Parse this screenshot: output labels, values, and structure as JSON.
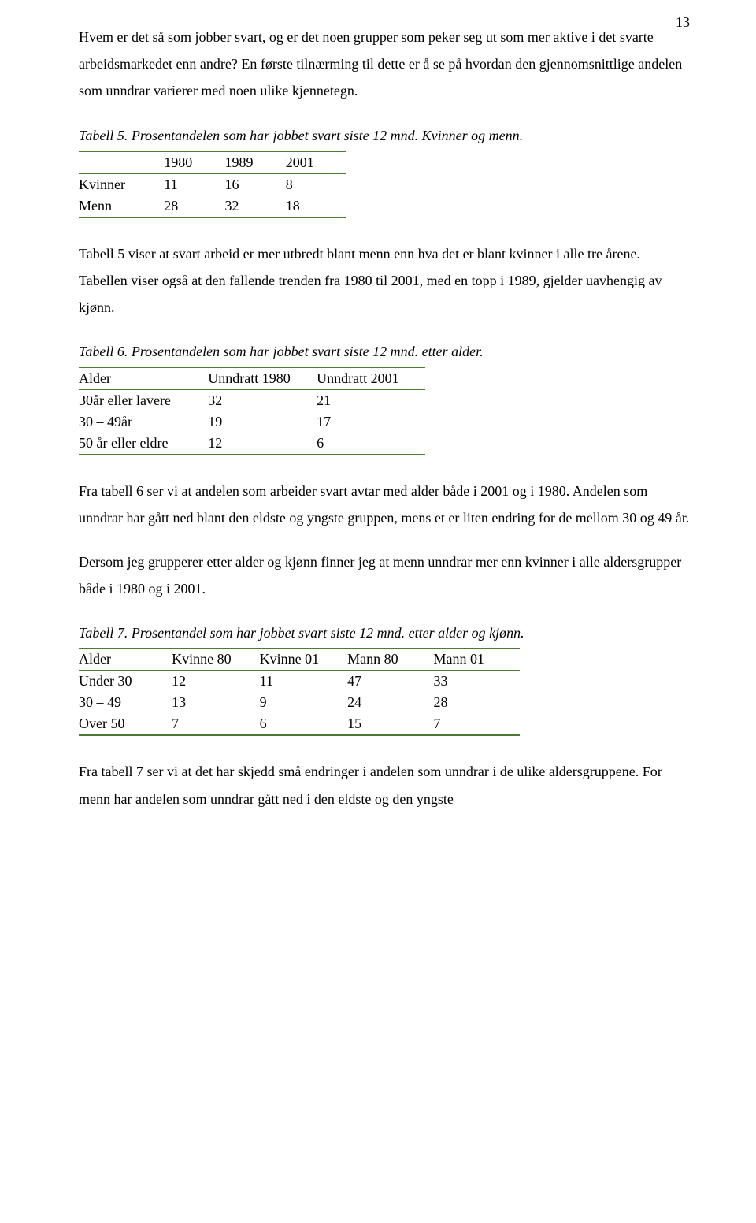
{
  "page_number": "13",
  "rule_color": "#497b31",
  "text_color": "#000000",
  "background_color": "#ffffff",
  "font": {
    "family": "Times New Roman",
    "body_size_pt": 13,
    "line_height": 1.9
  },
  "para1": "Hvem er det så som jobber svart, og er det noen grupper som peker seg ut som mer aktive i det svarte arbeidsmarkedet enn andre? En første tilnærming til dette er å se på hvordan den gjennomsnittlige andelen som unndrar varierer med noen ulike kjennetegn.",
  "table5": {
    "type": "table",
    "caption": "Tabell 5. Prosentandelen som har jobbet svart siste 12 mnd. Kvinner og menn.",
    "columns": [
      "",
      "1980",
      "1989",
      "2001"
    ],
    "rows": [
      [
        "Kvinner",
        "11",
        "16",
        "8"
      ],
      [
        "Menn",
        "28",
        "32",
        "18"
      ]
    ]
  },
  "para2": "Tabell 5 viser at svart arbeid er mer utbredt blant menn enn hva det er blant kvinner i alle tre årene. Tabellen viser også at den fallende trenden fra 1980 til 2001, med en topp i 1989, gjelder uavhengig av kjønn.",
  "table6": {
    "type": "table",
    "caption": "Tabell 6. Prosentandelen som har jobbet svart siste 12 mnd. etter alder.",
    "columns": [
      "Alder",
      "Unndratt 1980",
      "Unndratt 2001"
    ],
    "rows": [
      [
        "30år eller lavere",
        "32",
        "21"
      ],
      [
        "30 – 49år",
        "19",
        "17"
      ],
      [
        "50 år eller eldre",
        "12",
        "6"
      ]
    ]
  },
  "para3": "Fra tabell 6 ser vi at andelen som arbeider svart avtar med alder både i 2001 og i 1980. Andelen som unndrar har gått ned blant den eldste og yngste gruppen, mens et er liten endring for de mellom 30 og 49 år.",
  "para4": "Dersom jeg grupperer etter alder og kjønn finner jeg at menn unndrar mer enn kvinner i alle aldersgrupper både i 1980 og i 2001.",
  "table7": {
    "type": "table",
    "caption": "Tabell 7. Prosentandel som har jobbet svart siste 12 mnd. etter alder og kjønn.",
    "columns": [
      "Alder",
      "Kvinne 80",
      "Kvinne 01",
      "Mann 80",
      "Mann 01"
    ],
    "rows": [
      [
        "Under 30",
        "12",
        "11",
        "47",
        "33"
      ],
      [
        "30 – 49",
        "13",
        "9",
        "24",
        "28"
      ],
      [
        "Over 50",
        "7",
        "6",
        "15",
        "7"
      ]
    ]
  },
  "para5": "Fra tabell 7 ser vi at det har skjedd små endringer i andelen som unndrar i de ulike aldersgruppene. For menn har andelen som unndrar gått ned i den eldste og den yngste"
}
